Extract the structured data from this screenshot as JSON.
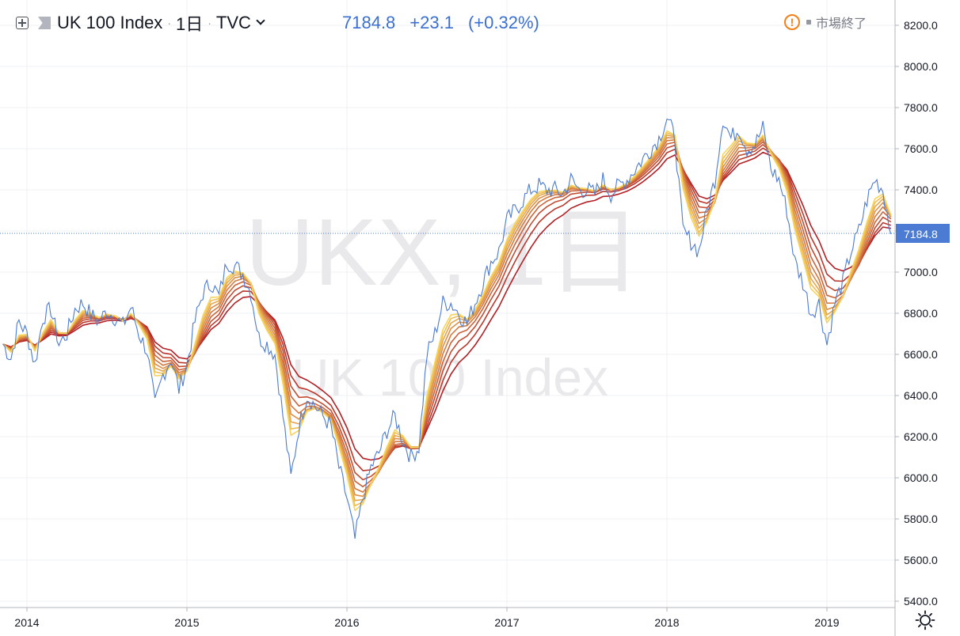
{
  "header": {
    "symbol_name": "UK 100 Index",
    "interval": "1日",
    "source": "TVC",
    "last_price": "7184.8",
    "change": "+23.1",
    "change_pct": "(+0.32%)",
    "market_status": "市場終了"
  },
  "watermark": {
    "line1": "UKX, 1日",
    "line2": "UK 100 Index"
  },
  "icons": [
    "add-symbol-icon",
    "flag-icon",
    "chevron-down-icon",
    "warning-icon",
    "settings-gear-icon"
  ],
  "colors": {
    "price_line": "#4b7bd3",
    "ribbon_fast": "#f6d45c",
    "ribbon_slow": "#b21f24",
    "price_label_bg": "#4b7bd3",
    "grid": "#eef0f3",
    "warning": "#f57f17"
  },
  "chart_data": {
    "type": "line",
    "title": "UK 100 Index",
    "x_unit": "year",
    "y_axis": {
      "position": "right",
      "ylim": [
        5400,
        8250
      ],
      "ticks": [
        5400,
        5600,
        5800,
        6000,
        6200,
        6400,
        6600,
        6800,
        7000,
        7200,
        7400,
        7600,
        7800,
        8000,
        8200
      ],
      "tick_labels": [
        "5400.0",
        "5600.0",
        "5800.0",
        "6000.0",
        "6200.0",
        "6400.0",
        "6600.0",
        "6800.0",
        "7000.0",
        "7200.0",
        "7400.0",
        "7600.0",
        "7800.0",
        "8000.0",
        "8200.0"
      ]
    },
    "x_axis": {
      "tick_values": [
        2014,
        2015,
        2016,
        2017,
        2018,
        2019
      ],
      "tick_labels": [
        "2014",
        "2015",
        "2016",
        "2017",
        "2018",
        "2019"
      ]
    },
    "grid": true,
    "last_value_label": "7184.8",
    "series": [
      {
        "type": "line",
        "x": [
          2013.85,
          2013.9,
          2013.95,
          2014.0,
          2014.05,
          2014.1,
          2014.15,
          2014.2,
          2014.25,
          2014.3,
          2014.35,
          2014.4,
          2014.45,
          2014.5,
          2014.55,
          2014.6,
          2014.65,
          2014.7,
          2014.75,
          2014.8,
          2014.85,
          2014.9,
          2014.95,
          2015.0,
          2015.05,
          2015.1,
          2015.15,
          2015.2,
          2015.25,
          2015.3,
          2015.35,
          2015.4,
          2015.45,
          2015.5,
          2015.55,
          2015.6,
          2015.65,
          2015.7,
          2015.75,
          2015.8,
          2015.85,
          2015.9,
          2015.95,
          2016.0,
          2016.05,
          2016.1,
          2016.15,
          2016.2,
          2016.25,
          2016.3,
          2016.35,
          2016.4,
          2016.45,
          2016.5,
          2016.55,
          2016.6,
          2016.65,
          2016.7,
          2016.75,
          2016.8,
          2016.85,
          2016.9,
          2016.95,
          2017.0,
          2017.05,
          2017.1,
          2017.15,
          2017.2,
          2017.25,
          2017.3,
          2017.35,
          2017.4,
          2017.45,
          2017.5,
          2017.55,
          2017.6,
          2017.65,
          2017.7,
          2017.75,
          2017.8,
          2017.85,
          2017.9,
          2017.95,
          2018.0,
          2018.05,
          2018.1,
          2018.15,
          2018.2,
          2018.25,
          2018.3,
          2018.35,
          2018.4,
          2018.45,
          2018.5,
          2018.55,
          2018.6,
          2018.65,
          2018.7,
          2018.75,
          2018.8,
          2018.85,
          2018.9,
          2018.95,
          2019.0,
          2019.05,
          2019.1,
          2019.15,
          2019.2,
          2019.25,
          2019.3,
          2019.35,
          2019.4
        ],
        "values": [
          6650,
          6580,
          6760,
          6700,
          6550,
          6780,
          6820,
          6650,
          6700,
          6820,
          6850,
          6790,
          6760,
          6810,
          6780,
          6740,
          6830,
          6700,
          6620,
          6350,
          6500,
          6580,
          6430,
          6550,
          6760,
          6900,
          6950,
          6880,
          7050,
          7030,
          6990,
          6900,
          6680,
          6650,
          6600,
          6300,
          6000,
          6250,
          6400,
          6350,
          6300,
          6250,
          6050,
          5900,
          5700,
          5900,
          6050,
          6120,
          6230,
          6300,
          6180,
          6100,
          6150,
          6600,
          6700,
          6850,
          6850,
          6800,
          6750,
          6850,
          6950,
          7050,
          7100,
          7250,
          7300,
          7350,
          7400,
          7420,
          7400,
          7400,
          7380,
          7450,
          7400,
          7400,
          7380,
          7450,
          7380,
          7420,
          7450,
          7500,
          7550,
          7600,
          7650,
          7750,
          7650,
          7200,
          7150,
          7100,
          7300,
          7450,
          7750,
          7650,
          7700,
          7600,
          7620,
          7700,
          7500,
          7450,
          7300,
          7050,
          6950,
          6800,
          6850,
          6650,
          6850,
          6950,
          7100,
          7200,
          7350,
          7450,
          7400,
          7184.8
        ]
      }
    ]
  }
}
